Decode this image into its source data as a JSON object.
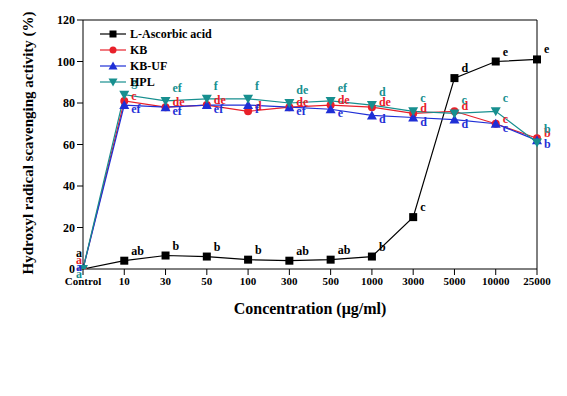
{
  "chart_data": {
    "type": "line",
    "x_label": "Concentration (μg/ml)",
    "y_label": "Hydroxyl radical scavenging activity (%)",
    "categories": [
      "Control",
      "10",
      "30",
      "50",
      "100",
      "300",
      "500",
      "1000",
      "3000",
      "5000",
      "10000",
      "25000"
    ],
    "ylim": [
      0,
      120
    ],
    "yticks": [
      0,
      20,
      40,
      60,
      80,
      100,
      120
    ],
    "grid": false,
    "legend": "top left",
    "series": [
      {
        "name": "L-Ascorbic acid",
        "color": "#000000",
        "marker": "square",
        "values": [
          0,
          4,
          6.5,
          6,
          4.5,
          4,
          4.5,
          6,
          25,
          92,
          100,
          101
        ],
        "annotations": [
          "a",
          "ab",
          "b",
          "b",
          "b",
          "ab",
          "ab",
          "b",
          "c",
          "d",
          "e",
          "e"
        ]
      },
      {
        "name": "KB",
        "color": "#e8202a",
        "marker": "circle",
        "values": [
          0,
          81,
          78,
          79,
          76,
          78,
          79,
          78,
          75,
          76,
          70,
          63
        ],
        "annotations": [
          "a",
          "c",
          "de",
          "de",
          "d",
          "de",
          "de",
          "de",
          "d",
          "d",
          "c",
          "b"
        ]
      },
      {
        "name": "KB-UF",
        "color": "#1f2fd6",
        "marker": "triangle",
        "values": [
          0,
          79,
          78,
          79,
          79,
          78,
          77,
          74,
          73,
          72,
          70,
          62
        ],
        "annotations": [
          "a",
          "ef",
          "ef",
          "ef",
          "f",
          "ef",
          "e",
          "d",
          "d",
          "d",
          "c",
          "b"
        ]
      },
      {
        "name": "HPL",
        "color": "#178f8f",
        "marker": "triangle-down",
        "values": [
          0,
          84,
          81,
          82,
          82,
          80,
          81,
          79,
          76,
          75,
          76,
          61
        ],
        "annotations": [
          "a",
          "g",
          "ef",
          "f",
          "f",
          "de",
          "ef",
          "d",
          "c",
          "c",
          "c",
          "b"
        ]
      }
    ]
  }
}
